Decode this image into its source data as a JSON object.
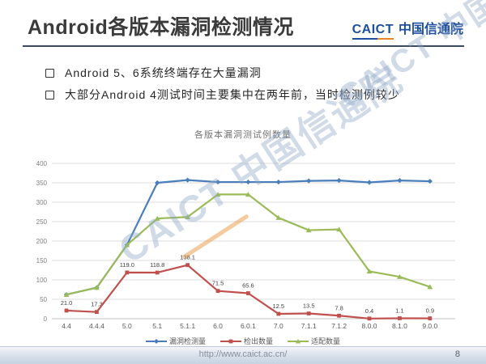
{
  "header": {
    "title": "Android各版本漏洞检测情况",
    "logo": {
      "brand": "CAICT",
      "name": "中国信通院"
    }
  },
  "bullets": {
    "items": [
      "Android 5、6系统终端存在大量漏洞",
      "大部分Android 4测试时间主要集中在两年前，当时检测例较少"
    ]
  },
  "chart_data": {
    "type": "line",
    "title": "各版本漏洞测试例数量",
    "categories": [
      "4.4",
      "4.4.4",
      "5.0",
      "5.1",
      "5.1.1",
      "6.0",
      "6.0.1",
      "7.0",
      "7.1.1",
      "7.1.2",
      "8.0.0",
      "8.1.0",
      "9.0.0"
    ],
    "series": [
      {
        "name": "漏洞检测量",
        "color": "#4a7ebb",
        "marker": "diamond",
        "show_labels": false,
        "values": [
          62,
          80,
          190,
          350,
          357,
          352,
          352,
          352,
          355,
          356,
          351,
          356,
          354
        ]
      },
      {
        "name": "检出数量",
        "color": "#c0504d",
        "marker": "square",
        "show_labels": true,
        "values": [
          21.0,
          17.3,
          119.0,
          118.8,
          138.1,
          71.5,
          65.6,
          12.5,
          13.5,
          7.8,
          0.4,
          1.1,
          0.9
        ],
        "labels": [
          "21.0",
          "17.3",
          "119.0",
          "118.8",
          "138.1",
          "71.5",
          "65.6",
          "12.5",
          "13.5",
          "7.8",
          "0.4",
          "1.1",
          "0.9"
        ]
      },
      {
        "name": "适配数量",
        "color": "#9bbb59",
        "marker": "triangle",
        "show_labels": false,
        "values": [
          62,
          80,
          190,
          258,
          262,
          320,
          320,
          260,
          228,
          230,
          122,
          108,
          82
        ]
      }
    ],
    "ylim": [
      0,
      400
    ],
    "ytick_step": 50,
    "grid": true,
    "legend_position": "bottom",
    "label_color": "#404040",
    "axis_text_color": "#7f7f7f"
  },
  "watermark": {
    "text": "CAICT 中国信通院"
  },
  "footer": {
    "url": "http://www.caict.ac.cn/",
    "page": "8"
  }
}
